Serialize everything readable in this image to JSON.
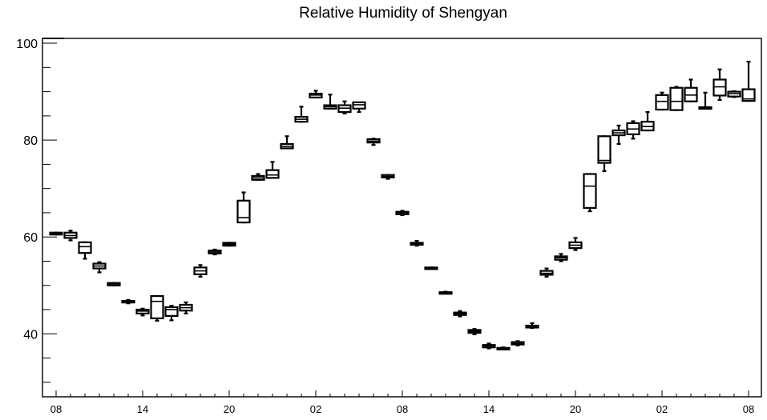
{
  "chart_data": {
    "type": "box",
    "title": "Relative Humidity of Shengyan",
    "xlabel": "",
    "ylabel": "",
    "ylim": [
      27,
      101
    ],
    "x_tick_labels": [
      "08",
      "14",
      "20",
      "02",
      "08",
      "14",
      "20",
      "02",
      "08"
    ],
    "y_tick_labels": [
      "40",
      "60",
      "80",
      "100"
    ],
    "y_ticks": [
      40,
      60,
      80,
      100
    ],
    "grid": false,
    "series": [
      {
        "boxes": [
          {
            "hour": 0,
            "q1": 60.5,
            "median": 60.7,
            "q3": 60.9,
            "min": 60.5,
            "max": 60.9
          },
          {
            "hour": 1,
            "q1": 59.8,
            "median": 60.3,
            "q3": 60.9,
            "min": 59.3,
            "max": 61.3
          },
          {
            "hour": 2,
            "q1": 56.7,
            "median": 58.0,
            "q3": 58.9,
            "min": 55.5,
            "max": 58.9
          },
          {
            "hour": 3,
            "q1": 53.5,
            "median": 54.0,
            "q3": 54.5,
            "min": 52.7,
            "max": 54.8
          },
          {
            "hour": 4,
            "q1": 50.0,
            "median": 50.3,
            "q3": 50.5,
            "min": 50.0,
            "max": 50.5
          },
          {
            "hour": 5,
            "q1": 46.7,
            "median": 46.7,
            "q3": 46.8,
            "min": 46.3,
            "max": 47.0
          },
          {
            "hour": 6,
            "q1": 44.2,
            "median": 44.7,
            "q3": 45.0,
            "min": 43.8,
            "max": 45.2
          },
          {
            "hour": 7,
            "q1": 43.2,
            "median": 46.7,
            "q3": 47.8,
            "min": 42.7,
            "max": 47.8
          },
          {
            "hour": 8,
            "q1": 43.7,
            "median": 45.0,
            "q3": 45.5,
            "min": 42.8,
            "max": 45.8
          },
          {
            "hour": 9,
            "q1": 44.8,
            "median": 45.4,
            "q3": 46.0,
            "min": 44.2,
            "max": 46.5
          },
          {
            "hour": 10,
            "q1": 52.3,
            "median": 53.0,
            "q3": 53.7,
            "min": 51.8,
            "max": 54.2
          },
          {
            "hour": 11,
            "q1": 56.6,
            "median": 56.9,
            "q3": 57.2,
            "min": 56.4,
            "max": 57.4
          },
          {
            "hour": 12,
            "q1": 58.2,
            "median": 58.5,
            "q3": 58.8,
            "min": 58.2,
            "max": 58.8
          },
          {
            "hour": 13,
            "q1": 63.0,
            "median": 64.0,
            "q3": 67.5,
            "min": 63.0,
            "max": 69.2
          },
          {
            "hour": 14,
            "q1": 71.8,
            "median": 72.2,
            "q3": 72.6,
            "min": 71.8,
            "max": 73.0
          },
          {
            "hour": 15,
            "q1": 72.2,
            "median": 72.8,
            "q3": 73.8,
            "min": 72.2,
            "max": 75.5
          },
          {
            "hour": 16,
            "q1": 78.3,
            "median": 78.7,
            "q3": 79.2,
            "min": 78.3,
            "max": 80.8
          },
          {
            "hour": 17,
            "q1": 83.8,
            "median": 84.3,
            "q3": 84.8,
            "min": 83.8,
            "max": 86.9
          },
          {
            "hour": 18,
            "q1": 88.8,
            "median": 89.3,
            "q3": 89.6,
            "min": 88.8,
            "max": 90.2
          },
          {
            "hour": 19,
            "q1": 86.5,
            "median": 86.9,
            "q3": 87.2,
            "min": 86.5,
            "max": 89.4
          },
          {
            "hour": 20,
            "q1": 85.8,
            "median": 86.6,
            "q3": 87.2,
            "min": 85.5,
            "max": 88.0
          },
          {
            "hour": 21,
            "q1": 86.5,
            "median": 87.3,
            "q3": 87.8,
            "min": 85.8,
            "max": 87.8
          },
          {
            "hour": 22,
            "q1": 79.5,
            "median": 79.8,
            "q3": 80.2,
            "min": 79.0,
            "max": 80.3
          },
          {
            "hour": 23,
            "q1": 72.3,
            "median": 72.5,
            "q3": 72.8,
            "min": 72.0,
            "max": 72.8
          },
          {
            "hour": 24,
            "q1": 64.7,
            "median": 65.0,
            "q3": 65.2,
            "min": 64.5,
            "max": 65.4
          },
          {
            "hour": 25,
            "q1": 58.4,
            "median": 58.6,
            "q3": 58.8,
            "min": 58.2,
            "max": 59.2
          },
          {
            "hour": 26,
            "q1": 53.5,
            "median": 53.6,
            "q3": 53.7,
            "min": 53.5,
            "max": 53.7
          },
          {
            "hour": 27,
            "q1": 48.4,
            "median": 48.5,
            "q3": 48.6,
            "min": 48.3,
            "max": 48.7
          },
          {
            "hour": 28,
            "q1": 43.9,
            "median": 44.2,
            "q3": 44.4,
            "min": 43.6,
            "max": 44.7
          },
          {
            "hour": 29,
            "q1": 40.2,
            "median": 40.5,
            "q3": 40.8,
            "min": 39.9,
            "max": 41.0
          },
          {
            "hour": 30,
            "q1": 37.2,
            "median": 37.5,
            "q3": 37.7,
            "min": 37.0,
            "max": 38.0
          },
          {
            "hour": 31,
            "q1": 36.9,
            "median": 37.0,
            "q3": 37.1,
            "min": 36.8,
            "max": 37.2
          },
          {
            "hour": 32,
            "q1": 37.8,
            "median": 38.0,
            "q3": 38.3,
            "min": 37.6,
            "max": 38.5
          },
          {
            "hour": 33,
            "q1": 41.3,
            "median": 41.5,
            "q3": 41.7,
            "min": 41.2,
            "max": 42.2
          },
          {
            "hour": 34,
            "q1": 52.2,
            "median": 52.5,
            "q3": 53.0,
            "min": 51.8,
            "max": 53.5
          },
          {
            "hour": 35,
            "q1": 55.3,
            "median": 55.7,
            "q3": 56.0,
            "min": 55.0,
            "max": 56.5
          },
          {
            "hour": 36,
            "q1": 57.7,
            "median": 58.3,
            "q3": 58.9,
            "min": 57.3,
            "max": 59.8
          },
          {
            "hour": 37,
            "q1": 66.0,
            "median": 70.5,
            "q3": 73.0,
            "min": 65.3,
            "max": 73.0
          },
          {
            "hour": 38,
            "q1": 75.3,
            "median": 75.8,
            "q3": 80.8,
            "min": 73.6,
            "max": 80.8
          },
          {
            "hour": 39,
            "q1": 81.0,
            "median": 81.5,
            "q3": 82.0,
            "min": 79.2,
            "max": 83.0
          },
          {
            "hour": 40,
            "q1": 81.2,
            "median": 82.3,
            "q3": 83.5,
            "min": 80.3,
            "max": 83.9
          },
          {
            "hour": 41,
            "q1": 82.0,
            "median": 82.8,
            "q3": 83.8,
            "min": 82.0,
            "max": 85.8
          },
          {
            "hour": 42,
            "q1": 86.3,
            "median": 88.0,
            "q3": 89.3,
            "min": 86.3,
            "max": 89.8
          },
          {
            "hour": 43,
            "q1": 86.2,
            "median": 88.0,
            "q3": 90.8,
            "min": 86.2,
            "max": 91.0
          },
          {
            "hour": 44,
            "q1": 88.0,
            "median": 89.3,
            "q3": 90.8,
            "min": 88.0,
            "max": 92.5
          },
          {
            "hour": 45,
            "q1": 86.8,
            "median": 86.8,
            "q3": 86.8,
            "min": 86.8,
            "max": 89.8
          },
          {
            "hour": 46,
            "q1": 89.2,
            "median": 91.0,
            "q3": 92.5,
            "min": 88.3,
            "max": 94.6
          },
          {
            "hour": 47,
            "q1": 89.0,
            "median": 89.6,
            "q3": 90.0,
            "min": 88.9,
            "max": 90.1
          },
          {
            "hour": 48,
            "q1": 88.1,
            "median": 88.5,
            "q3": 90.5,
            "min": 88.1,
            "max": 96.2
          }
        ]
      }
    ]
  }
}
